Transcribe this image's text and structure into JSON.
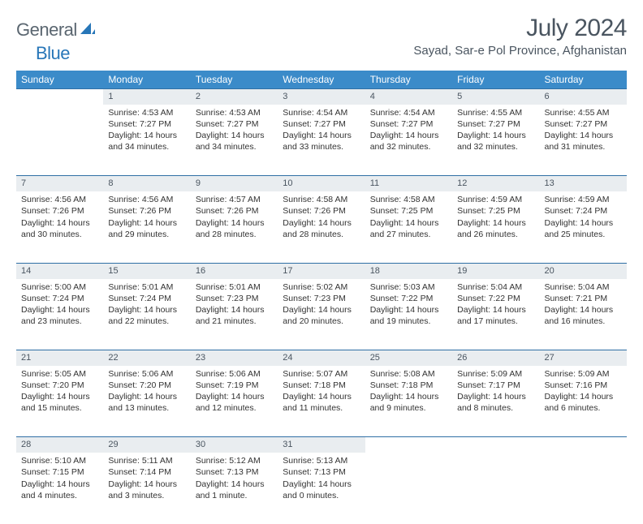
{
  "logo": {
    "part1": "General",
    "part2": "Blue"
  },
  "title": "July 2024",
  "subtitle": "Sayad, Sar-e Pol Province, Afghanistan",
  "colors": {
    "header_bg": "#3b8bc9",
    "header_text": "#ffffff",
    "daynum_bg": "#e9edf0",
    "rule": "#2f6fa5",
    "logo_gray": "#5a6670",
    "logo_blue": "#2776b8",
    "title_color": "#4a5560"
  },
  "weekdays": [
    "Sunday",
    "Monday",
    "Tuesday",
    "Wednesday",
    "Thursday",
    "Friday",
    "Saturday"
  ],
  "weeks": [
    {
      "nums": [
        "",
        "1",
        "2",
        "3",
        "4",
        "5",
        "6"
      ],
      "cells": [
        null,
        {
          "sr": "4:53 AM",
          "ss": "7:27 PM",
          "dl": "14 hours and 34 minutes."
        },
        {
          "sr": "4:53 AM",
          "ss": "7:27 PM",
          "dl": "14 hours and 34 minutes."
        },
        {
          "sr": "4:54 AM",
          "ss": "7:27 PM",
          "dl": "14 hours and 33 minutes."
        },
        {
          "sr": "4:54 AM",
          "ss": "7:27 PM",
          "dl": "14 hours and 32 minutes."
        },
        {
          "sr": "4:55 AM",
          "ss": "7:27 PM",
          "dl": "14 hours and 32 minutes."
        },
        {
          "sr": "4:55 AM",
          "ss": "7:27 PM",
          "dl": "14 hours and 31 minutes."
        }
      ]
    },
    {
      "nums": [
        "7",
        "8",
        "9",
        "10",
        "11",
        "12",
        "13"
      ],
      "cells": [
        {
          "sr": "4:56 AM",
          "ss": "7:26 PM",
          "dl": "14 hours and 30 minutes."
        },
        {
          "sr": "4:56 AM",
          "ss": "7:26 PM",
          "dl": "14 hours and 29 minutes."
        },
        {
          "sr": "4:57 AM",
          "ss": "7:26 PM",
          "dl": "14 hours and 28 minutes."
        },
        {
          "sr": "4:58 AM",
          "ss": "7:26 PM",
          "dl": "14 hours and 28 minutes."
        },
        {
          "sr": "4:58 AM",
          "ss": "7:25 PM",
          "dl": "14 hours and 27 minutes."
        },
        {
          "sr": "4:59 AM",
          "ss": "7:25 PM",
          "dl": "14 hours and 26 minutes."
        },
        {
          "sr": "4:59 AM",
          "ss": "7:24 PM",
          "dl": "14 hours and 25 minutes."
        }
      ]
    },
    {
      "nums": [
        "14",
        "15",
        "16",
        "17",
        "18",
        "19",
        "20"
      ],
      "cells": [
        {
          "sr": "5:00 AM",
          "ss": "7:24 PM",
          "dl": "14 hours and 23 minutes."
        },
        {
          "sr": "5:01 AM",
          "ss": "7:24 PM",
          "dl": "14 hours and 22 minutes."
        },
        {
          "sr": "5:01 AM",
          "ss": "7:23 PM",
          "dl": "14 hours and 21 minutes."
        },
        {
          "sr": "5:02 AM",
          "ss": "7:23 PM",
          "dl": "14 hours and 20 minutes."
        },
        {
          "sr": "5:03 AM",
          "ss": "7:22 PM",
          "dl": "14 hours and 19 minutes."
        },
        {
          "sr": "5:04 AM",
          "ss": "7:22 PM",
          "dl": "14 hours and 17 minutes."
        },
        {
          "sr": "5:04 AM",
          "ss": "7:21 PM",
          "dl": "14 hours and 16 minutes."
        }
      ]
    },
    {
      "nums": [
        "21",
        "22",
        "23",
        "24",
        "25",
        "26",
        "27"
      ],
      "cells": [
        {
          "sr": "5:05 AM",
          "ss": "7:20 PM",
          "dl": "14 hours and 15 minutes."
        },
        {
          "sr": "5:06 AM",
          "ss": "7:20 PM",
          "dl": "14 hours and 13 minutes."
        },
        {
          "sr": "5:06 AM",
          "ss": "7:19 PM",
          "dl": "14 hours and 12 minutes."
        },
        {
          "sr": "5:07 AM",
          "ss": "7:18 PM",
          "dl": "14 hours and 11 minutes."
        },
        {
          "sr": "5:08 AM",
          "ss": "7:18 PM",
          "dl": "14 hours and 9 minutes."
        },
        {
          "sr": "5:09 AM",
          "ss": "7:17 PM",
          "dl": "14 hours and 8 minutes."
        },
        {
          "sr": "5:09 AM",
          "ss": "7:16 PM",
          "dl": "14 hours and 6 minutes."
        }
      ]
    },
    {
      "nums": [
        "28",
        "29",
        "30",
        "31",
        "",
        "",
        ""
      ],
      "cells": [
        {
          "sr": "5:10 AM",
          "ss": "7:15 PM",
          "dl": "14 hours and 4 minutes."
        },
        {
          "sr": "5:11 AM",
          "ss": "7:14 PM",
          "dl": "14 hours and 3 minutes."
        },
        {
          "sr": "5:12 AM",
          "ss": "7:13 PM",
          "dl": "14 hours and 1 minute."
        },
        {
          "sr": "5:13 AM",
          "ss": "7:13 PM",
          "dl": "14 hours and 0 minutes."
        },
        null,
        null,
        null
      ]
    }
  ],
  "labels": {
    "sunrise": "Sunrise:",
    "sunset": "Sunset:",
    "daylight": "Daylight:"
  }
}
